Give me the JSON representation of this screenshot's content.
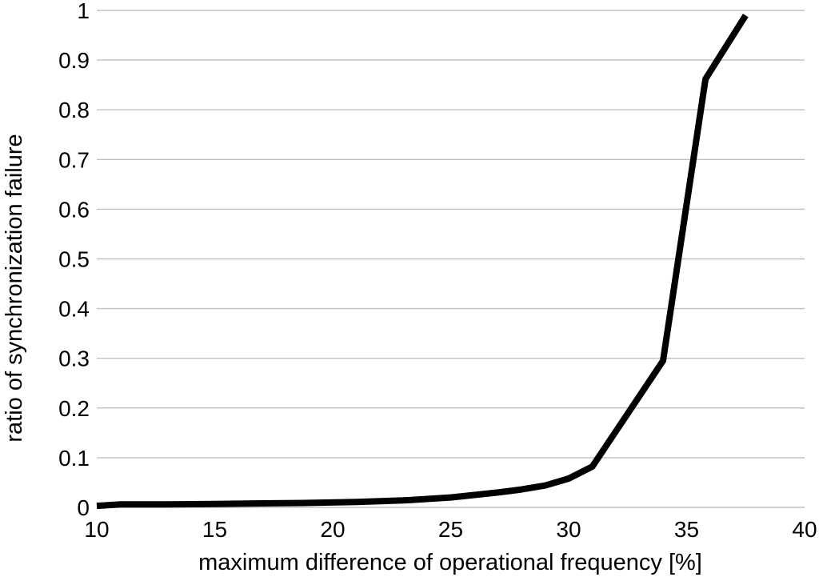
{
  "chart_data": {
    "type": "line",
    "title": "",
    "xlabel": "maximum difference of operational frequency [%]",
    "ylabel": "ratio of synchronization failure",
    "xlim": [
      10,
      40
    ],
    "ylim": [
      0,
      1
    ],
    "x_ticks": [
      10,
      15,
      20,
      25,
      30,
      35,
      40
    ],
    "y_ticks": [
      0,
      0.1,
      0.2,
      0.3,
      0.4,
      0.5,
      0.6,
      0.7,
      0.8,
      0.9,
      1
    ],
    "grid": "horizontal-only",
    "legend_position": "none",
    "series": [
      {
        "name": "ratio of synchronization failure",
        "points": [
          [
            10,
            0.003
          ],
          [
            11,
            0.006
          ],
          [
            13,
            0.006
          ],
          [
            15,
            0.007
          ],
          [
            17,
            0.008
          ],
          [
            19,
            0.009
          ],
          [
            21,
            0.011
          ],
          [
            23,
            0.014
          ],
          [
            25,
            0.02
          ],
          [
            26,
            0.025
          ],
          [
            27,
            0.03
          ],
          [
            28,
            0.036
          ],
          [
            29,
            0.044
          ],
          [
            30,
            0.058
          ],
          [
            31,
            0.082
          ],
          [
            34,
            0.295
          ],
          [
            35.8,
            0.862
          ],
          [
            37.5,
            0.99
          ]
        ]
      }
    ],
    "colors": {
      "line": "#000000",
      "gridline": "#c0c0c0",
      "text": "#000000",
      "background": "#ffffff"
    }
  }
}
